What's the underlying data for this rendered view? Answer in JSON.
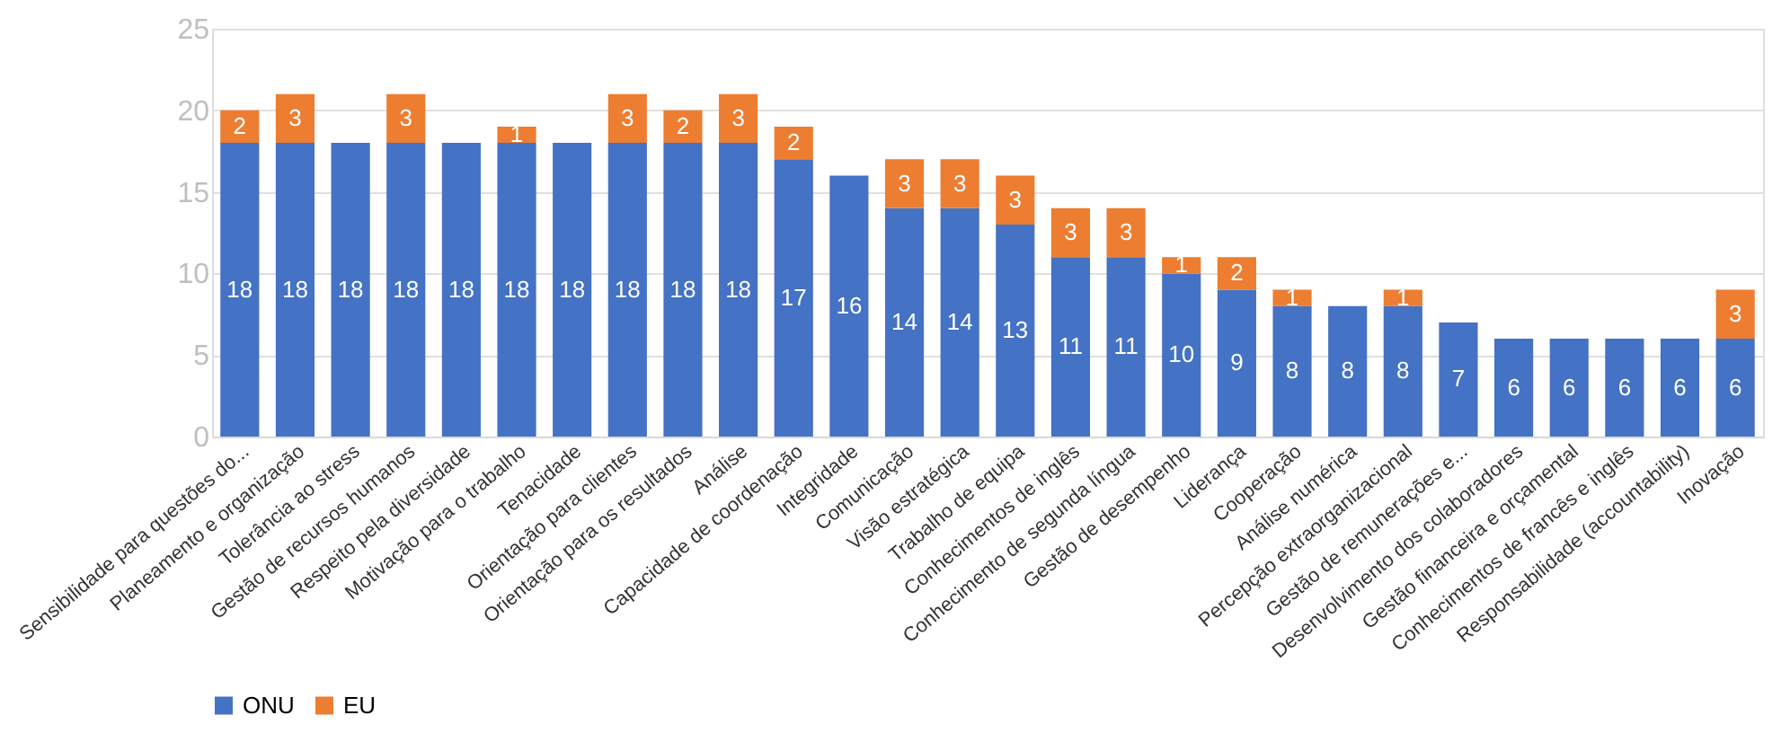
{
  "chart_data": {
    "type": "bar",
    "stacked": true,
    "categories": [
      "Sensibilidade para questões do...",
      "Planeamento e organização",
      "Tolerância ao stress",
      "Gestão de recursos humanos",
      "Respeito pela diversidade",
      "Motivação para o trabalho",
      "Tenacidade",
      "Orientação para clientes",
      "Orientação para os resultados",
      "Análise",
      "Capacidade de coordenação",
      "Integridade",
      "Comunicação",
      "Visão estratégica",
      "Trabalho de equipa",
      "Conhecimentos de inglês",
      "Conhecimento de segunda língua",
      "Gestão de desempenho",
      "Liderança",
      "Cooperação",
      "Análise numérica",
      "Percepção extraorganizacional",
      "Gestão de remunerações e...",
      "Desenvolvimento dos colaboradores",
      "Gestão financeira e orçamental",
      "Conhecimentos de francês e inglês",
      "Responsabilidade (accountability)",
      "Inovação"
    ],
    "series": [
      {
        "name": "ONU",
        "color": "#4472c4",
        "values": [
          18,
          18,
          18,
          18,
          18,
          18,
          18,
          18,
          18,
          18,
          17,
          16,
          14,
          14,
          13,
          11,
          11,
          10,
          9,
          8,
          8,
          8,
          7,
          6,
          6,
          6,
          6,
          6
        ]
      },
      {
        "name": "EU",
        "color": "#ed7d31",
        "values": [
          2,
          3,
          null,
          3,
          null,
          1,
          null,
          3,
          2,
          3,
          2,
          null,
          3,
          3,
          3,
          3,
          3,
          1,
          2,
          1,
          null,
          1,
          null,
          null,
          null,
          null,
          null,
          3
        ]
      }
    ],
    "ylim": [
      0,
      25
    ],
    "yticks": [
      0,
      5,
      10,
      15,
      20,
      25
    ],
    "grid": "y",
    "legend": "bottom",
    "data_labels": true
  }
}
